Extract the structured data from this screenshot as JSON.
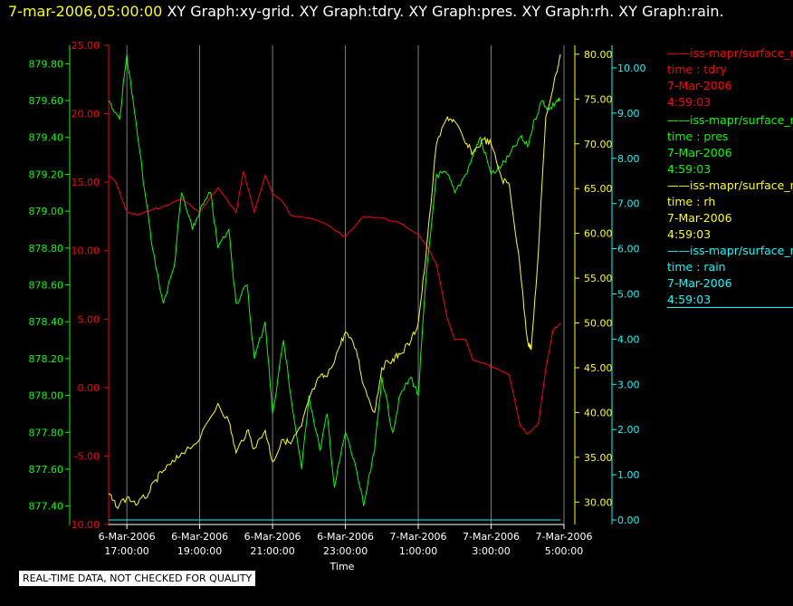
{
  "title": {
    "timestamp": "7-mar-2006,05:00:00",
    "graphs": "XY Graph:xy-grid.  XY Graph:tdry.  XY Graph:pres.  XY Graph:rh.  XY Graph:rain."
  },
  "legend": [
    {
      "name": "iss-mapr/surface_n",
      "var": "time : tdry",
      "date": "7-Mar-2006",
      "time": "4:59:03",
      "color": "#ff0000"
    },
    {
      "name": "iss-mapr/surface_n",
      "var": "time : pres",
      "date": "7-Mar-2006",
      "time": "4:59:03",
      "color": "#00ff00"
    },
    {
      "name": "iss-mapr/surface_n",
      "var": "time : rh",
      "date": "7-Mar-2006",
      "time": "4:59:03",
      "color": "#ffff00"
    },
    {
      "name": "iss-mapr/surface_n",
      "var": "time : rain",
      "date": "7-Mar-2006",
      "time": "4:59:03",
      "color": "#00ffff"
    }
  ],
  "disclaimer": "REAL-TIME DATA, NOT CHECKED FOR QUALITY",
  "chart_data": {
    "type": "line",
    "xlabel": "Time",
    "x_ticks": [
      [
        "6-Mar-2006",
        "17:00:00"
      ],
      [
        "6-Mar-2006",
        "19:00:00"
      ],
      [
        "6-Mar-2006",
        "21:00:00"
      ],
      [
        "6-Mar-2006",
        "23:00:00"
      ],
      [
        "7-Mar-2006",
        "1:00:00"
      ],
      [
        "7-Mar-2006",
        "3:00:00"
      ],
      [
        "7-Mar-2006",
        "5:00:00"
      ]
    ],
    "x_hours": [
      0,
      2,
      4,
      6,
      8,
      10,
      12
    ],
    "xlim_hours": [
      -0.5,
      12.0
    ],
    "axes": {
      "tdry": {
        "color": "#ff0000",
        "ylim": [
          -10,
          25
        ],
        "ticks": [
          "25.00",
          "20.00",
          "15.00",
          "10.00",
          "5.00",
          "0.00",
          "-5.00",
          "-10.00"
        ]
      },
      "pres": {
        "color": "#00ff00",
        "ylim": [
          877.3,
          879.9
        ],
        "ticks": [
          "879.80",
          "879.60",
          "879.40",
          "879.20",
          "879.00",
          "878.80",
          "878.60",
          "878.40",
          "878.20",
          "878.00",
          "877.80",
          "877.60",
          "877.40"
        ]
      },
      "rh": {
        "color": "#ffff00",
        "ylim": [
          27.5,
          81
        ],
        "ticks": [
          "80.00",
          "75.00",
          "70.00",
          "65.00",
          "60.00",
          "55.00",
          "50.00",
          "45.00",
          "40.00",
          "35.00",
          "30.00"
        ]
      },
      "rain": {
        "color": "#00ffff",
        "ylim": [
          -0.1,
          10.5
        ],
        "ticks": [
          "10.00",
          "9.00",
          "8.00",
          "7.00",
          "6.00",
          "5.00",
          "4.00",
          "3.00",
          "2.00",
          "1.00",
          "0.00"
        ]
      }
    },
    "grid": "vertical",
    "series": [
      {
        "name": "time : tdry",
        "color": "#ff0000",
        "x": [
          -0.5,
          -0.3,
          0.0,
          0.3,
          0.7,
          1.0,
          1.5,
          2.0,
          2.5,
          3.0,
          3.2,
          3.5,
          3.8,
          4.0,
          4.3,
          4.5,
          5.0,
          5.5,
          6.0,
          6.5,
          7.0,
          7.5,
          8.0,
          8.3,
          8.5,
          8.8,
          9.0,
          9.3,
          9.5,
          9.8,
          10.0,
          10.5,
          10.8,
          11.0,
          11.3,
          11.5,
          11.7,
          11.9
        ],
        "values": [
          15.5,
          15.0,
          12.8,
          12.6,
          13.0,
          13.2,
          13.8,
          12.8,
          14.6,
          12.8,
          15.8,
          12.8,
          15.5,
          14.2,
          13.5,
          12.6,
          12.4,
          11.9,
          11.0,
          12.5,
          12.4,
          12.0,
          11.2,
          10.0,
          9.0,
          5.0,
          3.5,
          3.5,
          2.0,
          1.8,
          1.5,
          0.9,
          -2.8,
          -3.4,
          -2.6,
          1.4,
          4.2,
          4.7
        ]
      },
      {
        "name": "time : pres",
        "color": "#00ff00",
        "x": [
          -0.5,
          -0.2,
          0.0,
          0.2,
          0.5,
          0.7,
          1.0,
          1.3,
          1.5,
          1.8,
          2.0,
          2.3,
          2.5,
          2.8,
          3.0,
          3.3,
          3.5,
          3.8,
          4.0,
          4.3,
          4.5,
          4.8,
          5.0,
          5.3,
          5.5,
          5.7,
          6.0,
          6.3,
          6.5,
          6.8,
          7.0,
          7.3,
          7.5,
          7.8,
          8.0,
          8.2,
          8.5,
          8.8,
          9.0,
          9.3,
          9.5,
          9.7,
          10.0,
          10.3,
          10.5,
          10.8,
          11.0,
          11.2,
          11.4,
          11.6,
          11.8,
          11.9
        ],
        "values": [
          879.6,
          879.5,
          879.85,
          879.55,
          879.1,
          878.8,
          878.5,
          878.7,
          879.1,
          878.9,
          879.0,
          879.1,
          878.8,
          878.9,
          878.5,
          878.6,
          878.2,
          878.4,
          877.9,
          878.3,
          878.0,
          877.6,
          878.0,
          877.7,
          877.9,
          877.5,
          877.8,
          877.6,
          877.4,
          877.7,
          878.1,
          877.8,
          878.0,
          878.1,
          878.0,
          878.6,
          879.2,
          879.2,
          879.1,
          879.2,
          879.3,
          879.4,
          879.2,
          879.25,
          879.3,
          879.4,
          879.35,
          879.5,
          879.6,
          879.55,
          879.6,
          879.6
        ]
      },
      {
        "name": "time : rh",
        "color": "#ffff00",
        "x": [
          -0.5,
          -0.3,
          0.0,
          0.3,
          0.6,
          0.8,
          1.0,
          1.3,
          1.5,
          2.0,
          2.5,
          2.8,
          3.0,
          3.3,
          3.5,
          3.8,
          4.0,
          4.3,
          4.5,
          4.8,
          5.0,
          5.3,
          5.5,
          5.8,
          6.0,
          6.3,
          6.5,
          6.8,
          7.0,
          7.3,
          7.5,
          7.8,
          8.0,
          8.2,
          8.5,
          8.8,
          9.0,
          9.3,
          9.5,
          9.8,
          10.0,
          10.3,
          10.5,
          10.8,
          11.0,
          11.1,
          11.3,
          11.5,
          11.8,
          11.9
        ],
        "values": [
          31,
          29.5,
          30.5,
          29.8,
          31,
          32.5,
          33.5,
          34.5,
          35.5,
          37,
          41,
          39,
          35.5,
          38,
          36,
          38,
          34.5,
          37,
          36.5,
          38.5,
          41.5,
          44,
          44,
          47,
          49,
          47,
          43,
          40,
          45,
          46,
          46.5,
          48,
          50,
          57,
          70,
          73,
          72.5,
          70,
          69,
          70.5,
          70,
          66,
          65.5,
          56,
          48,
          47,
          58,
          73,
          78,
          80
        ]
      },
      {
        "name": "time : rain",
        "color": "#00ffff",
        "x": [
          -0.5,
          11.9
        ],
        "values": [
          0.0,
          0.0
        ]
      }
    ]
  }
}
